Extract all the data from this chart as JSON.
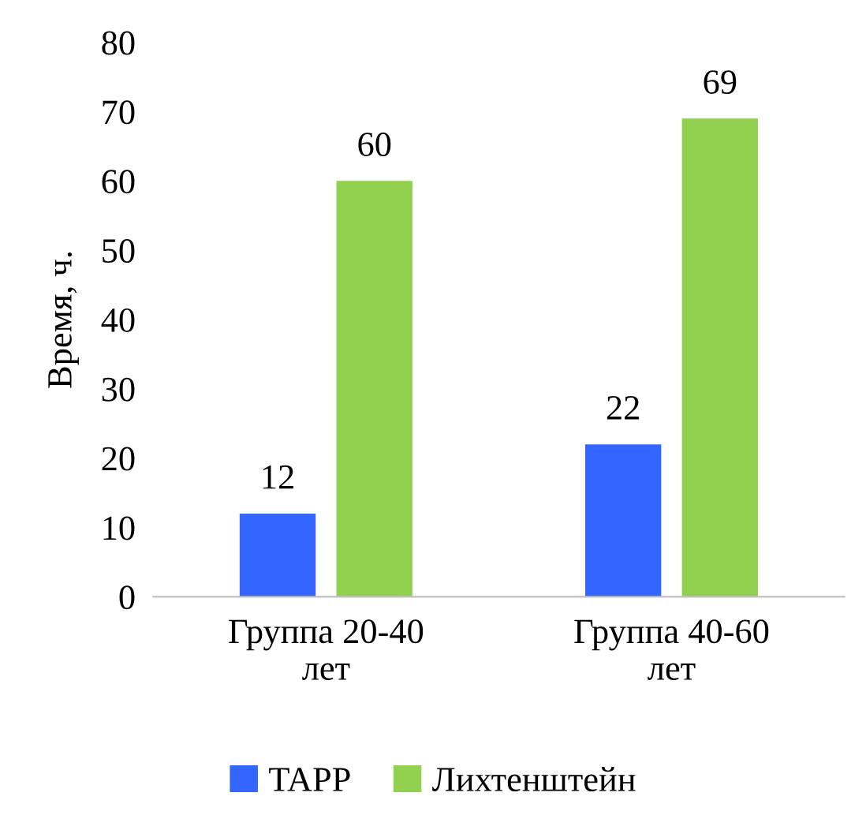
{
  "chart_data": {
    "type": "bar",
    "ylabel": "Время, ч.",
    "categories": [
      "Группа 20-40 лет",
      "Группа 40-60 лет"
    ],
    "series": [
      {
        "name": "TAPP",
        "color": "#3366ff",
        "values": [
          12,
          22
        ]
      },
      {
        "name": "Лихтенштейн",
        "color": "#92d050",
        "values": [
          60,
          69
        ]
      }
    ],
    "ylim": [
      0,
      80
    ],
    "yticks": [
      0,
      10,
      20,
      30,
      40,
      50,
      60,
      70,
      80
    ],
    "data_labels": true,
    "grid": false,
    "legend": "bottom"
  }
}
